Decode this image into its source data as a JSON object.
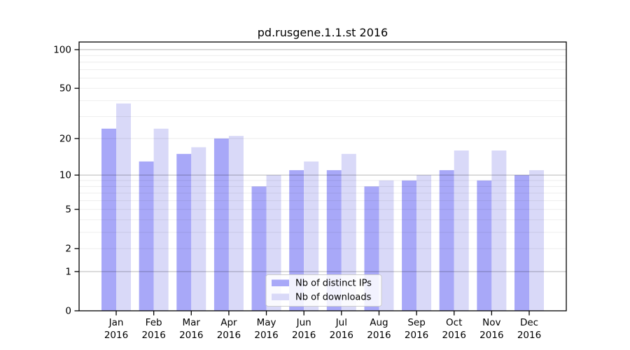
{
  "title": "pd.rusgene.1.1.st 2016",
  "colors": {
    "distinct_ips": "#a8a8f8",
    "downloads": "#d9d9f8",
    "axis": "#000000",
    "background": "#ffffff"
  },
  "legend": {
    "entries": [
      {
        "label": "Nb of distinct IPs",
        "series": "distinct_ips"
      },
      {
        "label": "Nb of downloads",
        "series": "downloads"
      }
    ]
  },
  "y_axis": {
    "tick_labels": [
      "0",
      "1",
      "2",
      "5",
      "10",
      "20",
      "50",
      "100"
    ]
  },
  "x_axis": {
    "year_line": "2016",
    "month_labels": [
      "Jan",
      "Feb",
      "Mar",
      "Apr",
      "May",
      "Jun",
      "Jul",
      "Aug",
      "Sep",
      "Oct",
      "Nov",
      "Dec"
    ]
  },
  "chart_data": {
    "type": "bar",
    "title": "pd.rusgene.1.1.st 2016",
    "categories": [
      "Jan 2016",
      "Feb 2016",
      "Mar 2016",
      "Apr 2016",
      "May 2016",
      "Jun 2016",
      "Jul 2016",
      "Aug 2016",
      "Sep 2016",
      "Oct 2016",
      "Nov 2016",
      "Dec 2016"
    ],
    "series": [
      {
        "name": "Nb of distinct IPs",
        "color": "#a8a8f8",
        "values": [
          24,
          13,
          15,
          20,
          8,
          11,
          11,
          8,
          9,
          11,
          9,
          10
        ]
      },
      {
        "name": "Nb of downloads",
        "color": "#d9d9f8",
        "values": [
          38,
          24,
          17,
          21,
          10,
          13,
          15,
          9,
          10,
          16,
          16,
          11
        ]
      }
    ],
    "xlabel": "",
    "ylabel": "",
    "yscale": "log1p",
    "ylim": [
      0,
      114.6
    ],
    "yticks": [
      0,
      1,
      2,
      5,
      10,
      20,
      50,
      100
    ],
    "minor_gridlines": [
      2,
      3,
      4,
      5,
      6,
      7,
      8,
      9,
      20,
      30,
      40,
      50,
      60,
      70,
      80,
      90
    ],
    "major_gridlines": [
      1,
      10,
      100
    ],
    "grid": true,
    "grid_over_bars": true,
    "legend_position": "lower center"
  }
}
